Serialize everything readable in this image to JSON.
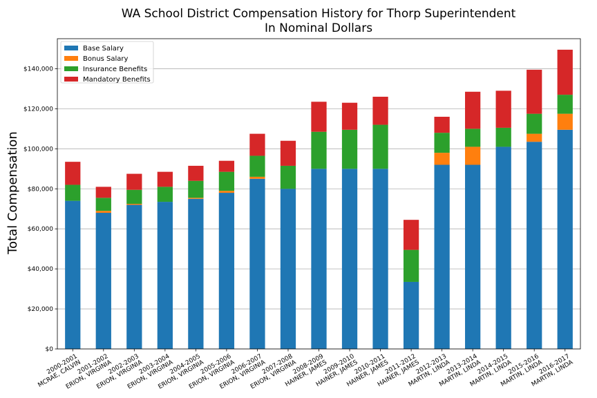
{
  "chart_data": {
    "type": "bar",
    "stacked": true,
    "title": "WA School District Compensation History for Thorp Superintendent",
    "subtitle": "In Nominal Dollars",
    "xlabel": "",
    "ylabel": "Total Compensation",
    "ylim": [
      0,
      155000
    ],
    "yticks": [
      "$0",
      "$20,000",
      "$40,000",
      "$60,000",
      "$80,000",
      "$100,000",
      "$120,000",
      "$140,000"
    ],
    "ytick_values": [
      0,
      20000,
      40000,
      60000,
      80000,
      100000,
      120000,
      140000
    ],
    "grid": "horizontal",
    "legend_position": "top-left",
    "categories": [
      [
        "2000-2001",
        "MCRAE, CALVIN"
      ],
      [
        "2001-2002",
        "ERION, VIRGINIA"
      ],
      [
        "2002-2003",
        "ERION, VIRGINIA"
      ],
      [
        "2003-2004",
        "ERION, VIRGINIA"
      ],
      [
        "2004-2005",
        "ERION, VIRGINIA"
      ],
      [
        "2005-2006",
        "ERION, VIRGINIA"
      ],
      [
        "2006-2007",
        "ERION, VIRGINIA"
      ],
      [
        "2007-2008",
        "ERION, VIRGINIA"
      ],
      [
        "2008-2009",
        "HAINER, JAMES"
      ],
      [
        "2009-2010",
        "HAINER, JAMES"
      ],
      [
        "2010-2011",
        "HAINER, JAMES"
      ],
      [
        "2011-2012",
        "HAINER, JAMES"
      ],
      [
        "2012-2013",
        "MARTIN, LINDA"
      ],
      [
        "2013-2014",
        "MARTIN, LINDA"
      ],
      [
        "2014-2015",
        "MARTIN, LINDA"
      ],
      [
        "2015-2016",
        "MARTIN, LINDA"
      ],
      [
        "2016-2017",
        "MARTIN, LINDA"
      ]
    ],
    "series": [
      {
        "name": "Base Salary",
        "color": "#1f77b4",
        "values": [
          74000,
          68000,
          72000,
          73500,
          75000,
          78000,
          85000,
          80000,
          90000,
          90000,
          90000,
          33500,
          92000,
          92000,
          101000,
          103500,
          109500
        ]
      },
      {
        "name": "Bonus Salary",
        "color": "#ff7f0e",
        "values": [
          0,
          1000,
          500,
          0,
          500,
          1000,
          1000,
          0,
          0,
          0,
          0,
          0,
          6000,
          9000,
          0,
          4000,
          8000
        ]
      },
      {
        "name": "Insurance Benefits",
        "color": "#2ca02c",
        "values": [
          8000,
          6500,
          7000,
          7500,
          8500,
          9500,
          10500,
          11500,
          18500,
          19500,
          22000,
          16000,
          10000,
          9000,
          9500,
          10000,
          9500
        ]
      },
      {
        "name": "Mandatory Benefits",
        "color": "#d62728",
        "values": [
          11500,
          5500,
          8000,
          7500,
          7500,
          5500,
          11000,
          12500,
          15000,
          13500,
          14000,
          15000,
          8000,
          18500,
          18500,
          22000,
          22500
        ]
      }
    ]
  }
}
